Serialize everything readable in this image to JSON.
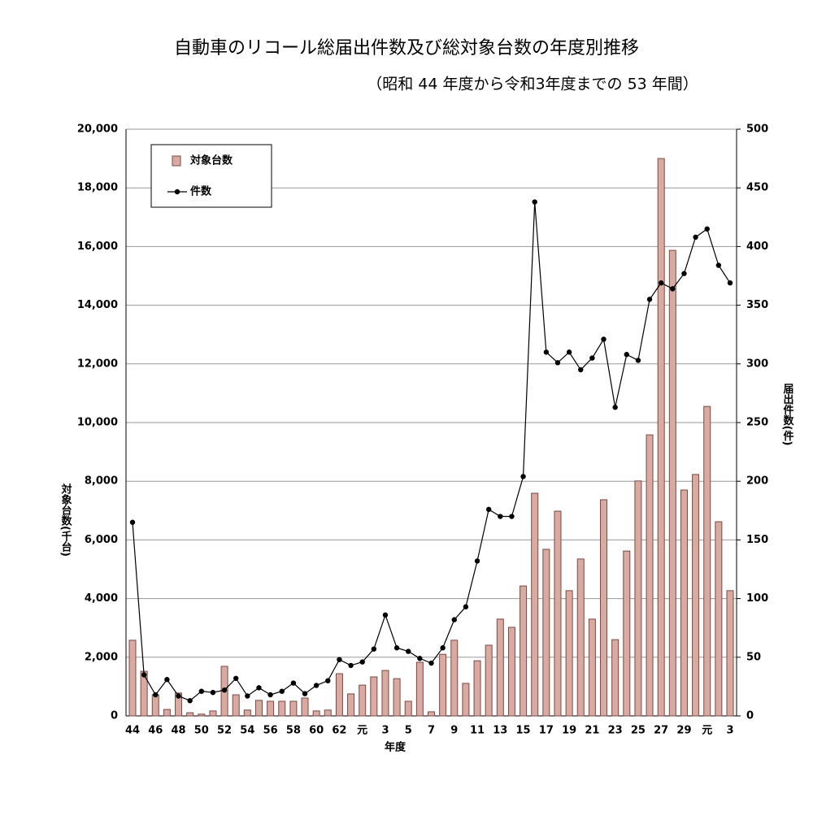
{
  "chart_data": {
    "type": "bar_line",
    "title": "自動車のリコール総届出件数及び総対象台数の年度別推移",
    "subtitle": "（昭和 44 年度から令和3年度までの 53 年間）",
    "x_label": "年度",
    "y_label": "対象台数(千台)",
    "y2_label": "届出件数(件)",
    "categories": [
      "44",
      null,
      "46",
      null,
      "48",
      null,
      "50",
      null,
      "52",
      null,
      "54",
      null,
      "56",
      null,
      "58",
      null,
      "60",
      null,
      "62",
      null,
      "元",
      null,
      "3",
      null,
      "5",
      null,
      "7",
      null,
      "9",
      null,
      "11",
      null,
      "13",
      null,
      "15",
      null,
      "17",
      null,
      "19",
      null,
      "21",
      null,
      "23",
      null,
      "25",
      null,
      "27",
      null,
      "29",
      null,
      "元",
      null,
      "3"
    ],
    "series": [
      {
        "name": "対象台数",
        "kind": "bar",
        "color": "#d8aaa2",
        "edge_color": "#7a4a44",
        "values": [
          2580,
          1520,
          720,
          220,
          780,
          110,
          60,
          170,
          1690,
          720,
          200,
          530,
          500,
          500,
          500,
          610,
          170,
          200,
          1440,
          750,
          1050,
          1330,
          1550,
          1270,
          500,
          1830,
          140,
          2100,
          2580,
          1110,
          1880,
          2410,
          3300,
          3020,
          4430,
          7590,
          5680,
          6980,
          4270,
          5350,
          3300,
          7370,
          2600,
          5620,
          8010,
          9580,
          19000,
          15870,
          7700,
          8230,
          10550,
          6620,
          4270
        ]
      },
      {
        "name": "件数",
        "kind": "line",
        "axis": "y2",
        "color": "#000000",
        "values": [
          165,
          35,
          18,
          31,
          17,
          13,
          21,
          20,
          22,
          32,
          17,
          24,
          18,
          21,
          28,
          19,
          26,
          30,
          48,
          43,
          46,
          57,
          86,
          58,
          55,
          49,
          45,
          58,
          82,
          93,
          132,
          176,
          170,
          170,
          204,
          438,
          310,
          301,
          310,
          295,
          305,
          321,
          263,
          308,
          303,
          355,
          369,
          364,
          377,
          408,
          415,
          384,
          369
        ]
      }
    ],
    "ylim": [
      0,
      20000
    ],
    "yticks": [
      0,
      {
        "value": 2000,
        "label": "2,000"
      },
      {
        "value": 4000,
        "label": "4,000"
      },
      {
        "value": 6000,
        "label": "6,000"
      },
      {
        "value": 8000,
        "label": "8,000"
      },
      {
        "value": 10000,
        "label": "10,000"
      },
      {
        "value": 12000,
        "label": "12,000"
      },
      {
        "value": 14000,
        "label": "14,000"
      },
      {
        "value": 16000,
        "label": "16,000"
      },
      {
        "value": 18000,
        "label": "18,000"
      },
      {
        "value": 20000,
        "label": "20,000"
      }
    ],
    "y2lim": [
      0,
      500
    ],
    "y2ticks": [
      0,
      50,
      100,
      150,
      200,
      250,
      300,
      350,
      400,
      450,
      500
    ],
    "grid": true,
    "legend": "top-left"
  }
}
